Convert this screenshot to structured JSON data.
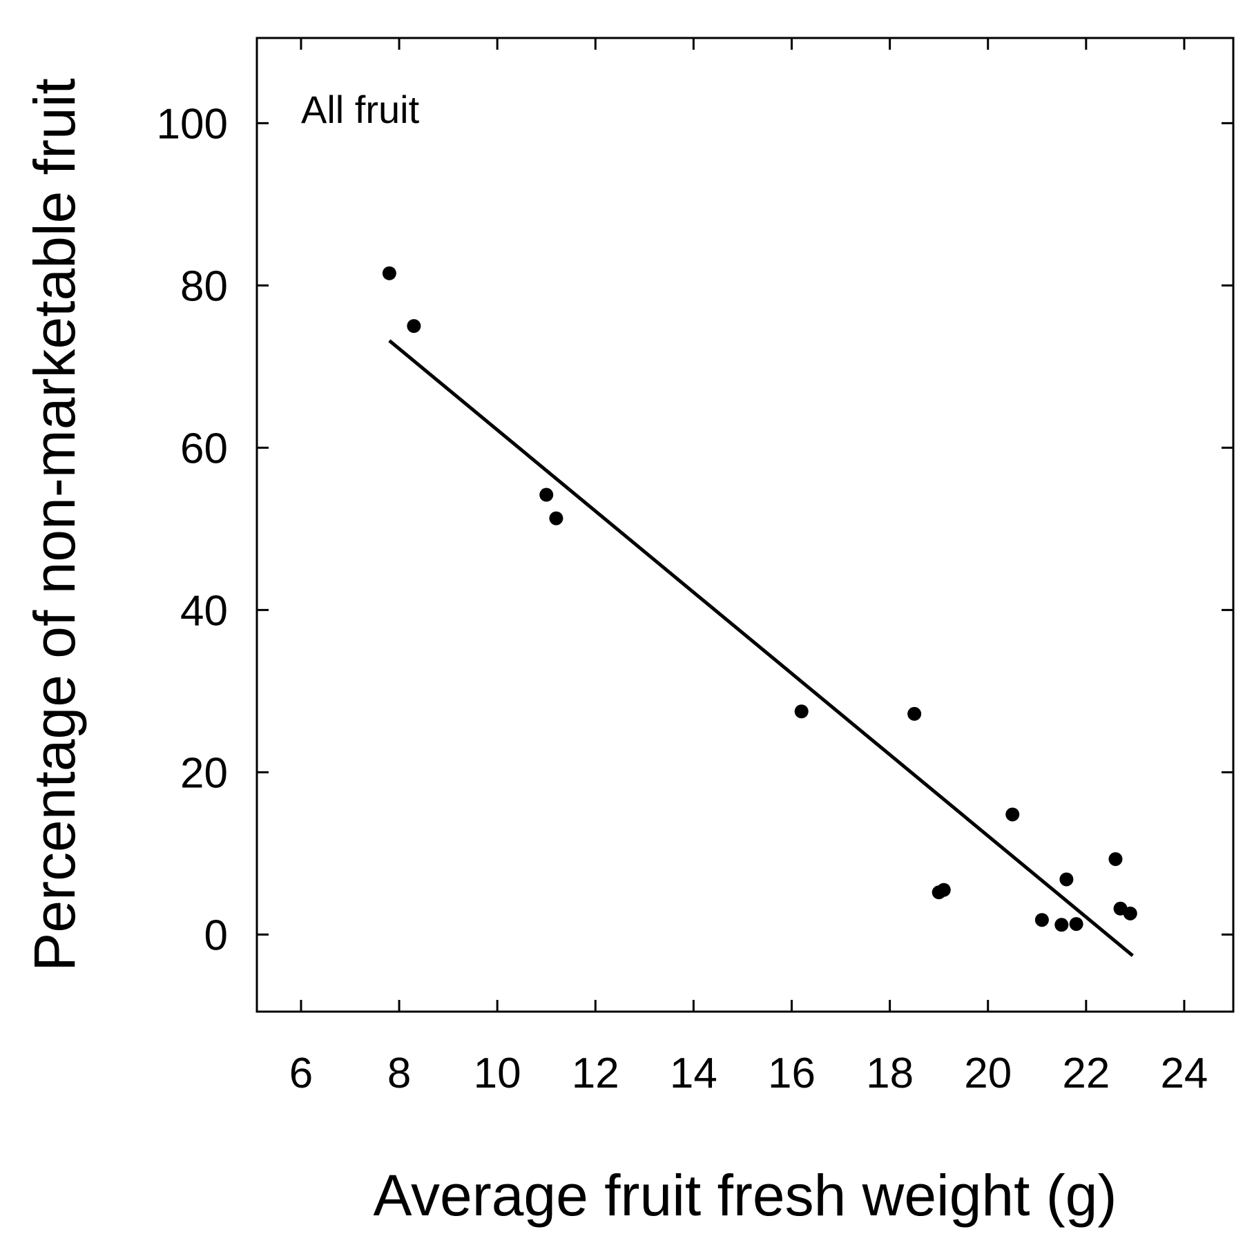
{
  "chart_data": {
    "type": "scatter",
    "title": "",
    "annotation": "All fruit",
    "xlabel": "Average fruit fresh weight (g)",
    "ylabel": "Percentage of non-marketable fruit",
    "xlim": [
      5.1,
      25.0
    ],
    "ylim": [
      -9.5,
      110.5
    ],
    "xticks": [
      6,
      8,
      10,
      12,
      14,
      16,
      18,
      20,
      22,
      24
    ],
    "yticks": [
      0,
      20,
      40,
      60,
      80,
      100
    ],
    "series": [
      {
        "name": "All fruit",
        "marker": "filled-circle",
        "x": [
          7.8,
          8.3,
          11.0,
          11.2,
          16.2,
          18.5,
          19.0,
          19.1,
          20.5,
          21.1,
          21.5,
          21.6,
          21.8,
          22.6,
          22.7,
          22.9
        ],
        "y": [
          81.5,
          75.0,
          54.2,
          51.3,
          27.5,
          27.2,
          5.2,
          5.5,
          14.8,
          1.8,
          1.2,
          6.8,
          1.3,
          9.3,
          3.2,
          2.6
        ]
      }
    ],
    "fit_line": {
      "x": [
        7.8,
        22.95
      ],
      "y": [
        73.2,
        -2.6
      ]
    },
    "grid": false
  },
  "style": {
    "ink": "#000000",
    "background": "#ffffff"
  }
}
